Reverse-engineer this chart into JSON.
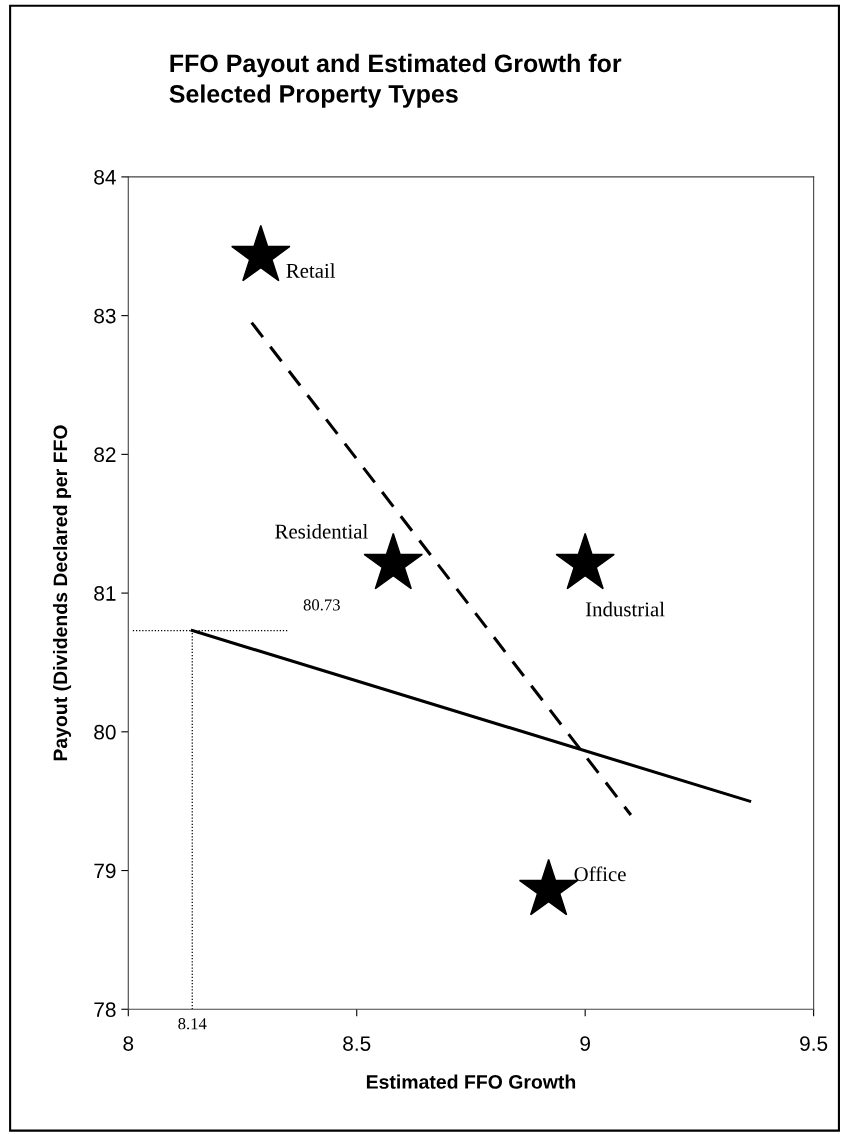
{
  "chart_data": {
    "type": "scatter",
    "title": "FFO Payout and Estimated Growth for\nSelected Property Types",
    "xlabel": "Estimated FFO Growth",
    "ylabel": "Payout (Dividends Declared per FFO",
    "xlim": [
      8,
      9.5
    ],
    "xticks": [
      8,
      8.5,
      9,
      9.5
    ],
    "ylim": [
      78,
      84
    ],
    "yticks": [
      78,
      79,
      80,
      81,
      82,
      83,
      84
    ],
    "grid": false,
    "legend": false,
    "marker": "star",
    "series": [
      {
        "name": "Retail",
        "color": "#000000",
        "x": [
          8.29
        ],
        "values": [
          83.43
        ]
      },
      {
        "name": "Residential",
        "color": "#000000",
        "x": [
          8.58
        ],
        "values": [
          81.21
        ]
      },
      {
        "name": "Industrial",
        "color": "#000000",
        "x": [
          9.0
        ],
        "values": [
          81.21
        ]
      },
      {
        "name": "Office",
        "color": "#000000",
        "x": [
          8.92
        ],
        "values": [
          78.86
        ]
      },
      {
        "type": "line",
        "color": "#000000",
        "line_style": "solid",
        "marker": "none",
        "x": [
          8.14,
          9.36
        ],
        "values": [
          80.73,
          79.5
        ]
      },
      {
        "type": "line",
        "color": "#000000",
        "line_style": "dashed",
        "marker": "none",
        "x": [
          8.27,
          9.1
        ],
        "values": [
          82.95,
          79.4
        ]
      },
      {
        "type": "line",
        "color": "#000000",
        "line_style": "dotted",
        "marker": "none",
        "x": [
          8.01,
          8.35
        ],
        "values": [
          80.73,
          80.73
        ]
      },
      {
        "type": "line",
        "color": "#000000",
        "line_style": "dotted",
        "marker": "none",
        "x": [
          8.14,
          8.14
        ],
        "values": [
          78,
          80.73
        ]
      }
    ],
    "annotations": [
      "80.73",
      {
        "text": "8.14",
        "x": 8.14,
        "y": 78
      }
    ]
  }
}
